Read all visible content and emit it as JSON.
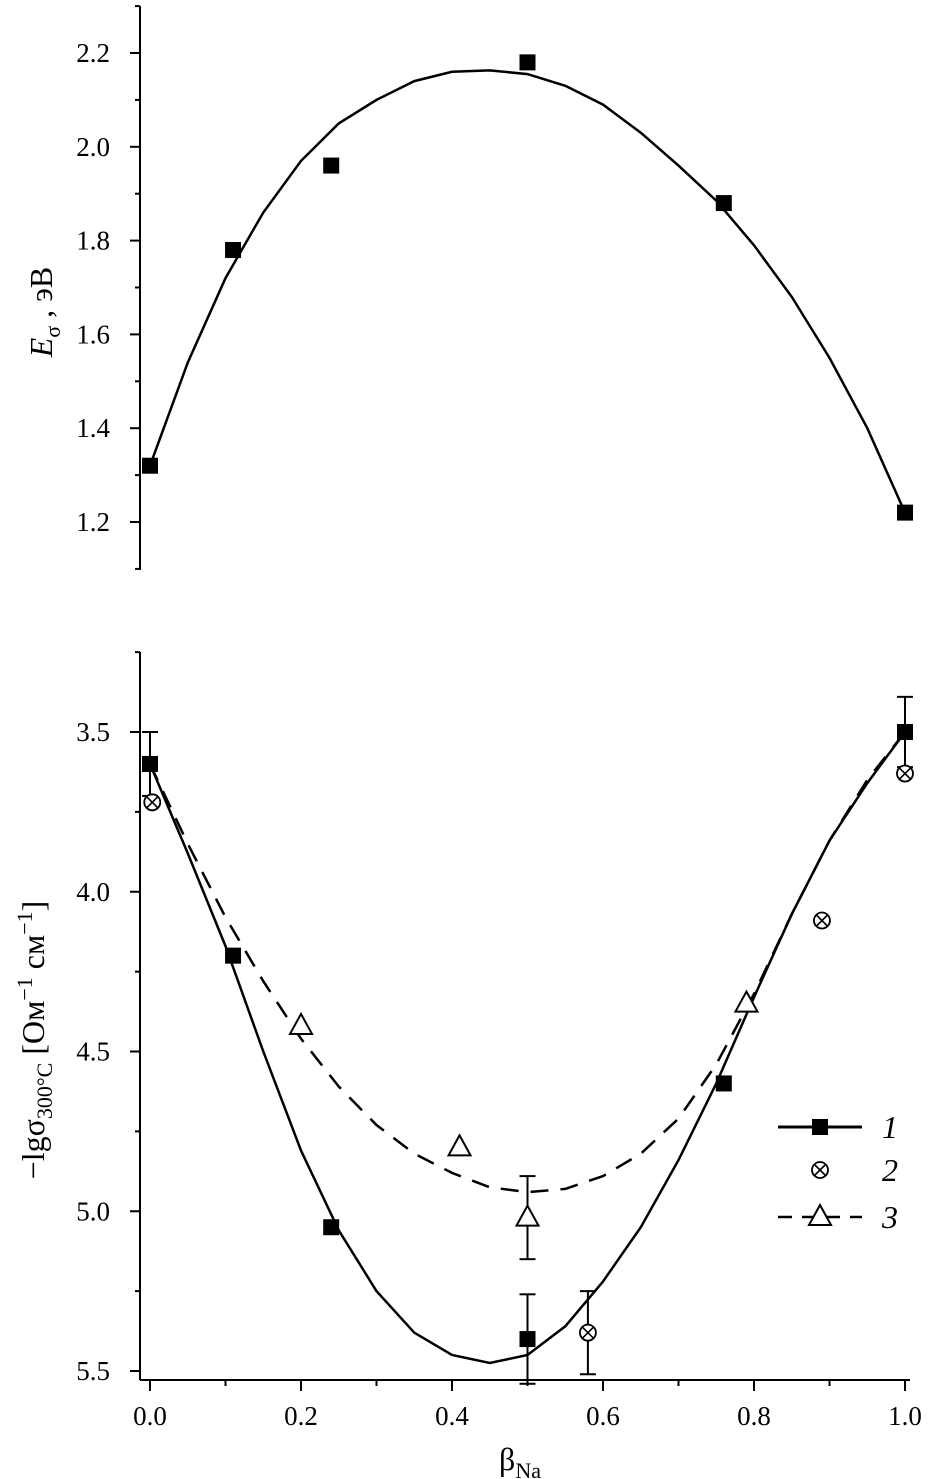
{
  "chart_data": [
    {
      "type": "scatter",
      "ylabel": {
        "main": "E",
        "sub": "σ",
        "rest": " , эВ"
      },
      "ylim": [
        1.1,
        2.3
      ],
      "yticks": [
        1.2,
        1.4,
        1.6,
        1.8,
        2.0,
        2.2
      ],
      "ytick_labels": [
        "1.2",
        "1.4",
        "1.6",
        "1.8",
        "2.0",
        "2.2"
      ],
      "xlim": [
        0.0,
        1.0
      ],
      "series": [
        {
          "marker": "filled-square",
          "points": [
            [
              0.0,
              1.32
            ],
            [
              0.11,
              1.78
            ],
            [
              0.24,
              1.96
            ],
            [
              0.5,
              2.18
            ],
            [
              0.76,
              1.88
            ],
            [
              1.0,
              1.22
            ]
          ]
        }
      ],
      "fit_curve": [
        [
          0.0,
          1.32
        ],
        [
          0.05,
          1.54
        ],
        [
          0.1,
          1.72
        ],
        [
          0.15,
          1.86
        ],
        [
          0.2,
          1.97
        ],
        [
          0.25,
          2.05
        ],
        [
          0.3,
          2.1
        ],
        [
          0.35,
          2.14
        ],
        [
          0.4,
          2.16
        ],
        [
          0.45,
          2.163
        ],
        [
          0.5,
          2.155
        ],
        [
          0.55,
          2.13
        ],
        [
          0.6,
          2.09
        ],
        [
          0.65,
          2.03
        ],
        [
          0.7,
          1.96
        ],
        [
          0.75,
          1.885
        ],
        [
          0.8,
          1.79
        ],
        [
          0.85,
          1.68
        ],
        [
          0.9,
          1.55
        ],
        [
          0.95,
          1.4
        ],
        [
          1.0,
          1.22
        ]
      ]
    },
    {
      "type": "scatter",
      "ylabel": {
        "prefix": "−lgσ",
        "sub": "300°C",
        "rest": " [Ом",
        "sup1": "−1",
        "mid": " см",
        "sup2": "−1",
        "end": "]"
      },
      "y_inverted": true,
      "ylim": [
        3.25,
        5.5
      ],
      "yticks": [
        3.5,
        4.0,
        4.5,
        5.0,
        5.5
      ],
      "ytick_labels": [
        "3.5",
        "4.0",
        "4.5",
        "5.0",
        "5.5"
      ],
      "xlim": [
        0.0,
        1.0
      ],
      "xticks": [
        0.0,
        0.2,
        0.4,
        0.6,
        0.8,
        1.0
      ],
      "xtick_labels": [
        "0.0",
        "0.2",
        "0.4",
        "0.6",
        "0.8",
        "1.0"
      ],
      "xlabel": {
        "main": "β",
        "sub": "Na"
      },
      "series": [
        {
          "name": "1",
          "marker": "filled-square",
          "line": "solid",
          "points": [
            [
              0.0,
              3.6
            ],
            [
              0.11,
              4.2
            ],
            [
              0.24,
              5.05
            ],
            [
              0.5,
              5.4
            ],
            [
              0.76,
              4.6
            ],
            [
              1.0,
              3.5
            ]
          ],
          "errors": [
            [
              0.0,
              0.1
            ],
            [
              0.5,
              0.14
            ],
            [
              1.0,
              0.11
            ]
          ]
        },
        {
          "name": "2",
          "marker": "circle-x",
          "line": "none",
          "points": [
            [
              0.003,
              3.72
            ],
            [
              0.58,
              5.38
            ],
            [
              0.89,
              4.09
            ],
            [
              1.0,
              3.63
            ]
          ],
          "errors": [
            [
              0.58,
              0.13
            ]
          ]
        },
        {
          "name": "3",
          "marker": "open-triangle",
          "line": "dashed",
          "points": [
            [
              0.2,
              4.42
            ],
            [
              0.41,
              4.8
            ],
            [
              0.5,
              5.02
            ],
            [
              0.79,
              4.35
            ]
          ],
          "errors": [
            [
              0.5,
              0.13
            ]
          ]
        }
      ],
      "fit_curves": {
        "1": [
          [
            0.0,
            3.6
          ],
          [
            0.05,
            3.88
          ],
          [
            0.1,
            4.17
          ],
          [
            0.15,
            4.5
          ],
          [
            0.2,
            4.81
          ],
          [
            0.25,
            5.06
          ],
          [
            0.3,
            5.25
          ],
          [
            0.35,
            5.38
          ],
          [
            0.4,
            5.45
          ],
          [
            0.45,
            5.475
          ],
          [
            0.5,
            5.45
          ],
          [
            0.55,
            5.36
          ],
          [
            0.6,
            5.22
          ],
          [
            0.65,
            5.05
          ],
          [
            0.7,
            4.84
          ],
          [
            0.75,
            4.6
          ],
          [
            0.8,
            4.33
          ],
          [
            0.85,
            4.07
          ],
          [
            0.9,
            3.84
          ],
          [
            0.95,
            3.66
          ],
          [
            1.0,
            3.5
          ]
        ],
        "3": [
          [
            0.0,
            3.6
          ],
          [
            0.05,
            3.85
          ],
          [
            0.1,
            4.08
          ],
          [
            0.15,
            4.28
          ],
          [
            0.2,
            4.46
          ],
          [
            0.25,
            4.61
          ],
          [
            0.3,
            4.73
          ],
          [
            0.35,
            4.82
          ],
          [
            0.4,
            4.88
          ],
          [
            0.45,
            4.925
          ],
          [
            0.5,
            4.94
          ],
          [
            0.55,
            4.93
          ],
          [
            0.6,
            4.89
          ],
          [
            0.65,
            4.82
          ],
          [
            0.7,
            4.71
          ],
          [
            0.75,
            4.54
          ],
          [
            0.8,
            4.32
          ],
          [
            0.85,
            4.07
          ],
          [
            0.9,
            3.84
          ],
          [
            0.95,
            3.65
          ],
          [
            1.0,
            3.5
          ]
        ]
      },
      "legend": {
        "placement": "bottom-right",
        "entries": [
          "1",
          "2",
          "3"
        ]
      }
    }
  ]
}
